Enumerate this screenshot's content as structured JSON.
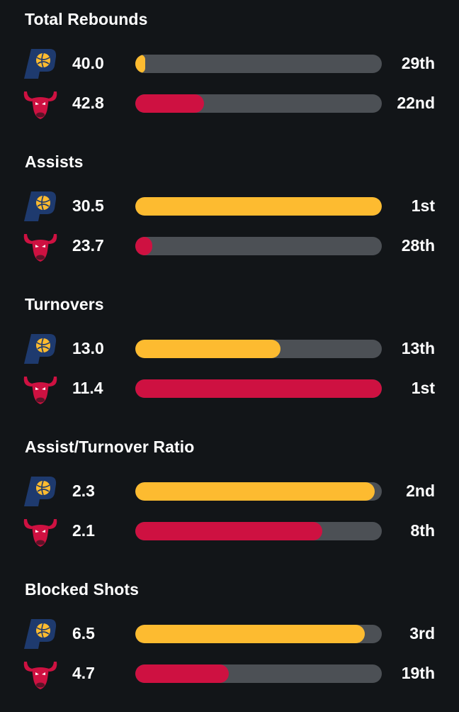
{
  "colors": {
    "background": "#121518",
    "track": "#4c5055",
    "pacers_fill": "#fdbb30",
    "bulls_fill": "#ce1141"
  },
  "teams": [
    {
      "icon": "pacers-logo-icon",
      "fill_color": "#fdbb30"
    },
    {
      "icon": "bulls-logo-icon",
      "fill_color": "#ce1141"
    }
  ],
  "sections": [
    {
      "title": "Total Rebounds",
      "rows": [
        {
          "value": "40.0",
          "rank": "29th",
          "fill_percent": 4
        },
        {
          "value": "42.8",
          "rank": "22nd",
          "fill_percent": 28
        }
      ]
    },
    {
      "title": "Assists",
      "rows": [
        {
          "value": "30.5",
          "rank": "1st",
          "fill_percent": 100
        },
        {
          "value": "23.7",
          "rank": "28th",
          "fill_percent": 7
        }
      ]
    },
    {
      "title": "Turnovers",
      "rows": [
        {
          "value": "13.0",
          "rank": "13th",
          "fill_percent": 59
        },
        {
          "value": "11.4",
          "rank": "1st",
          "fill_percent": 100
        }
      ]
    },
    {
      "title": "Assist/Turnover Ratio",
      "rows": [
        {
          "value": "2.3",
          "rank": "2nd",
          "fill_percent": 97
        },
        {
          "value": "2.1",
          "rank": "8th",
          "fill_percent": 76
        }
      ]
    },
    {
      "title": "Blocked Shots",
      "rows": [
        {
          "value": "6.5",
          "rank": "3rd",
          "fill_percent": 93
        },
        {
          "value": "4.7",
          "rank": "19th",
          "fill_percent": 38
        }
      ]
    }
  ]
}
